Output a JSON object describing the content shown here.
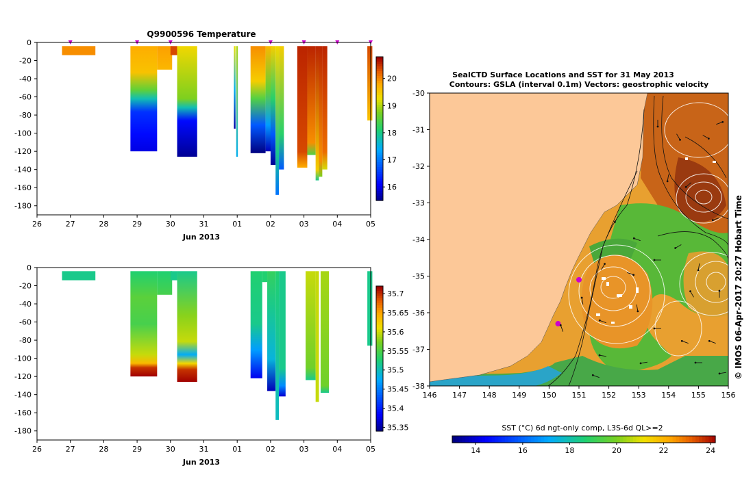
{
  "chart_data": [
    {
      "type": "heatmap",
      "title": "Q9900596  Temperature",
      "xlabel": "Jun 2013",
      "ylabel": "",
      "x_tick_labels": [
        "26",
        "27",
        "28",
        "29",
        "30",
        "31",
        "01",
        "02",
        "03",
        "04",
        "05"
      ],
      "y_tick_labels": [
        "0",
        "-20",
        "-40",
        "-60",
        "-80",
        "-100",
        "-120",
        "-140",
        "-160",
        "-180"
      ],
      "xlim_days": [
        26,
        36
      ],
      "ylim": [
        -190,
        0
      ],
      "profile_marker_days": [
        27.0,
        29.0,
        30.0,
        33.0,
        34.0,
        35.0,
        36.0
      ],
      "colorbar_ticks": [
        "16",
        "17",
        "18",
        "19",
        "20"
      ],
      "colorbar_range": [
        15.5,
        20.8
      ],
      "profiles": [
        {
          "t0": 26.75,
          "t1": 27.75,
          "depth": 14,
          "stops": [
            [
              0,
              20
            ]
          ]
        },
        {
          "t0": 28.8,
          "t1": 29.6,
          "depth": 120,
          "stops": [
            [
              0,
              19.8
            ],
            [
              30,
              19.6
            ],
            [
              50,
              18.6
            ],
            [
              60,
              17.8
            ],
            [
              75,
              16.5
            ],
            [
              100,
              16.2
            ],
            [
              120,
              16.0
            ]
          ]
        },
        {
          "t0": 29.6,
          "t1": 30.05,
          "depth": 30,
          "stops": [
            [
              0,
              19.9
            ],
            [
              30,
              19.7
            ]
          ]
        },
        {
          "t0": 30.0,
          "t1": 30.2,
          "depth": 14,
          "stops": [
            [
              0,
              20.4
            ]
          ]
        },
        {
          "t0": 30.2,
          "t1": 30.8,
          "depth": 126,
          "stops": [
            [
              0,
              19.4
            ],
            [
              60,
              18.8
            ],
            [
              70,
              17.8
            ],
            [
              85,
              16.2
            ],
            [
              126,
              15.6
            ]
          ]
        },
        {
          "t0": 31.9,
          "t1": 31.95,
          "depth": 95,
          "stops": [
            [
              0,
              19.3
            ],
            [
              50,
              17.5
            ],
            [
              95,
              15.7
            ]
          ]
        },
        {
          "t0": 31.97,
          "t1": 32.02,
          "depth": 126,
          "stops": [
            [
              0,
              19.0
            ],
            [
              126,
              17.5
            ]
          ]
        },
        {
          "t0": 32.4,
          "t1": 32.85,
          "depth": 122,
          "stops": [
            [
              0,
              20.0
            ],
            [
              40,
              19.5
            ],
            [
              60,
              18.5
            ],
            [
              90,
              16.8
            ],
            [
              122,
              15.5
            ]
          ]
        },
        {
          "t0": 32.85,
          "t1": 33.05,
          "depth": 120,
          "stops": [
            [
              0,
              19.7
            ],
            [
              50,
              18.6
            ],
            [
              90,
              17.3
            ],
            [
              120,
              15.8
            ]
          ]
        },
        {
          "t0": 33.0,
          "t1": 33.15,
          "depth": 135,
          "stops": [
            [
              0,
              19.5
            ],
            [
              60,
              18.2
            ],
            [
              100,
              16.8
            ],
            [
              135,
              15.6
            ]
          ]
        },
        {
          "t0": 33.15,
          "t1": 33.25,
          "depth": 168,
          "stops": [
            [
              0,
              19.4
            ],
            [
              120,
              18.0
            ],
            [
              168,
              17.0
            ]
          ]
        },
        {
          "t0": 33.25,
          "t1": 33.4,
          "depth": 140,
          "stops": [
            [
              0,
              19.5
            ],
            [
              100,
              18.2
            ],
            [
              140,
              16.8
            ]
          ]
        },
        {
          "t0": 33.8,
          "t1": 34.1,
          "depth": 138,
          "stops": [
            [
              0,
              20.6
            ],
            [
              120,
              20.4
            ],
            [
              138,
              19.8
            ]
          ]
        },
        {
          "t0": 34.1,
          "t1": 34.35,
          "depth": 124,
          "stops": [
            [
              0,
              20.6
            ],
            [
              110,
              20.0
            ],
            [
              124,
              18.5
            ]
          ]
        },
        {
          "t0": 34.35,
          "t1": 34.45,
          "depth": 152,
          "stops": [
            [
              0,
              20.6
            ],
            [
              140,
              19.5
            ],
            [
              152,
              18.0
            ]
          ]
        },
        {
          "t0": 34.45,
          "t1": 34.55,
          "depth": 148,
          "stops": [
            [
              0,
              20.6
            ],
            [
              130,
              20.0
            ],
            [
              148,
              18.8
            ]
          ]
        },
        {
          "t0": 34.55,
          "t1": 34.7,
          "depth": 140,
          "stops": [
            [
              0,
              20.6
            ],
            [
              120,
              20.2
            ],
            [
              140,
              19.2
            ]
          ]
        },
        {
          "t0": 35.9,
          "t1": 36.05,
          "depth": 86,
          "stops": [
            [
              0,
              20.4
            ],
            [
              86,
              19.6
            ]
          ]
        }
      ]
    },
    {
      "type": "heatmap",
      "title": "",
      "xlabel": "Jun 2013",
      "ylabel": "",
      "x_tick_labels": [
        "26",
        "27",
        "28",
        "29",
        "30",
        "31",
        "01",
        "02",
        "03",
        "04",
        "05"
      ],
      "y_tick_labels": [
        "0",
        "-20",
        "-40",
        "-60",
        "-80",
        "-100",
        "-120",
        "-140",
        "-160",
        "-180"
      ],
      "xlim_days": [
        26,
        36
      ],
      "ylim": [
        -190,
        0
      ],
      "colorbar_ticks": [
        "35.35",
        "35.4",
        "35.45",
        "35.5",
        "35.55",
        "35.6",
        "35.65",
        "35.7"
      ],
      "colorbar_range": [
        35.34,
        35.72
      ],
      "profiles": [
        {
          "t0": 26.75,
          "t1": 27.75,
          "depth": 14,
          "stops": [
            [
              0,
              35.52
            ]
          ]
        },
        {
          "t0": 28.8,
          "t1": 29.6,
          "depth": 120,
          "stops": [
            [
              0,
              35.53
            ],
            [
              30,
              35.56
            ],
            [
              60,
              35.55
            ],
            [
              95,
              35.6
            ],
            [
              105,
              35.64
            ],
            [
              110,
              35.7
            ],
            [
              120,
              35.72
            ]
          ]
        },
        {
          "t0": 29.6,
          "t1": 30.05,
          "depth": 30,
          "stops": [
            [
              0,
              35.53
            ],
            [
              30,
              35.55
            ]
          ]
        },
        {
          "t0": 30.0,
          "t1": 30.2,
          "depth": 14,
          "stops": [
            [
              0,
              35.52
            ]
          ]
        },
        {
          "t0": 30.2,
          "t1": 30.8,
          "depth": 126,
          "stops": [
            [
              0,
              35.52
            ],
            [
              50,
              35.58
            ],
            [
              80,
              35.6
            ],
            [
              95,
              35.48
            ],
            [
              105,
              35.62
            ],
            [
              112,
              35.7
            ],
            [
              126,
              35.72
            ]
          ]
        },
        {
          "t0": 32.4,
          "t1": 32.75,
          "depth": 122,
          "stops": [
            [
              0,
              35.53
            ],
            [
              60,
              35.52
            ],
            [
              90,
              35.47
            ],
            [
              122,
              35.38
            ]
          ]
        },
        {
          "t0": 32.75,
          "t1": 32.9,
          "depth": 16,
          "stops": [
            [
              0,
              35.53
            ]
          ]
        },
        {
          "t0": 32.9,
          "t1": 33.15,
          "depth": 136,
          "stops": [
            [
              0,
              35.54
            ],
            [
              40,
              35.52
            ],
            [
              100,
              35.49
            ],
            [
              136,
              35.36
            ]
          ]
        },
        {
          "t0": 33.15,
          "t1": 33.25,
          "depth": 168,
          "stops": [
            [
              0,
              35.53
            ],
            [
              168,
              35.5
            ]
          ]
        },
        {
          "t0": 33.25,
          "t1": 33.45,
          "depth": 142,
          "stops": [
            [
              0,
              35.52
            ],
            [
              110,
              35.52
            ],
            [
              130,
              35.46
            ],
            [
              142,
              35.37
            ]
          ]
        },
        {
          "t0": 34.05,
          "t1": 34.35,
          "depth": 124,
          "stops": [
            [
              0,
              35.6
            ],
            [
              110,
              35.57
            ],
            [
              124,
              35.52
            ]
          ]
        },
        {
          "t0": 34.35,
          "t1": 34.45,
          "depth": 148,
          "stops": [
            [
              0,
              35.6
            ],
            [
              148,
              35.6
            ]
          ]
        },
        {
          "t0": 34.5,
          "t1": 34.75,
          "depth": 138,
          "stops": [
            [
              0,
              35.59
            ],
            [
              130,
              35.57
            ],
            [
              138,
              35.52
            ]
          ]
        },
        {
          "t0": 35.9,
          "t1": 36.05,
          "depth": 86,
          "stops": [
            [
              0,
              35.52
            ]
          ]
        }
      ]
    },
    {
      "type": "heatmap",
      "title": "SealCTD Surface Locations and SST for 31 May 2013",
      "subtitle": "Contours: GSLA (interval 0.1m)  Vectors: geostrophic velocity",
      "xlabel": "",
      "ylabel": "",
      "x_tick_labels": [
        "146",
        "147",
        "148",
        "149",
        "150",
        "151",
        "152",
        "153",
        "154",
        "155",
        "156"
      ],
      "y_tick_labels": [
        "-30",
        "-31",
        "-32",
        "-33",
        "-34",
        "-35",
        "-36",
        "-37",
        "-38"
      ],
      "xlim": [
        146,
        156
      ],
      "ylim": [
        -38,
        -30
      ],
      "colorbar_label": "SST (°C) 6d ngt-only comp, L3S-6d QL>=2",
      "colorbar_ticks": [
        "14",
        "16",
        "18",
        "20",
        "22",
        "24"
      ],
      "colorbar_range": [
        13,
        24.2
      ],
      "seal_locations": [
        [
          151.0,
          -35.1
        ],
        [
          150.3,
          -36.3
        ]
      ],
      "side_credit": "© IMOS 06-Apr-2017 20:27 Hobart Time"
    }
  ],
  "palette": {
    "axis": "#000000",
    "land": "#fcc898",
    "marker": "#cc00cc"
  }
}
